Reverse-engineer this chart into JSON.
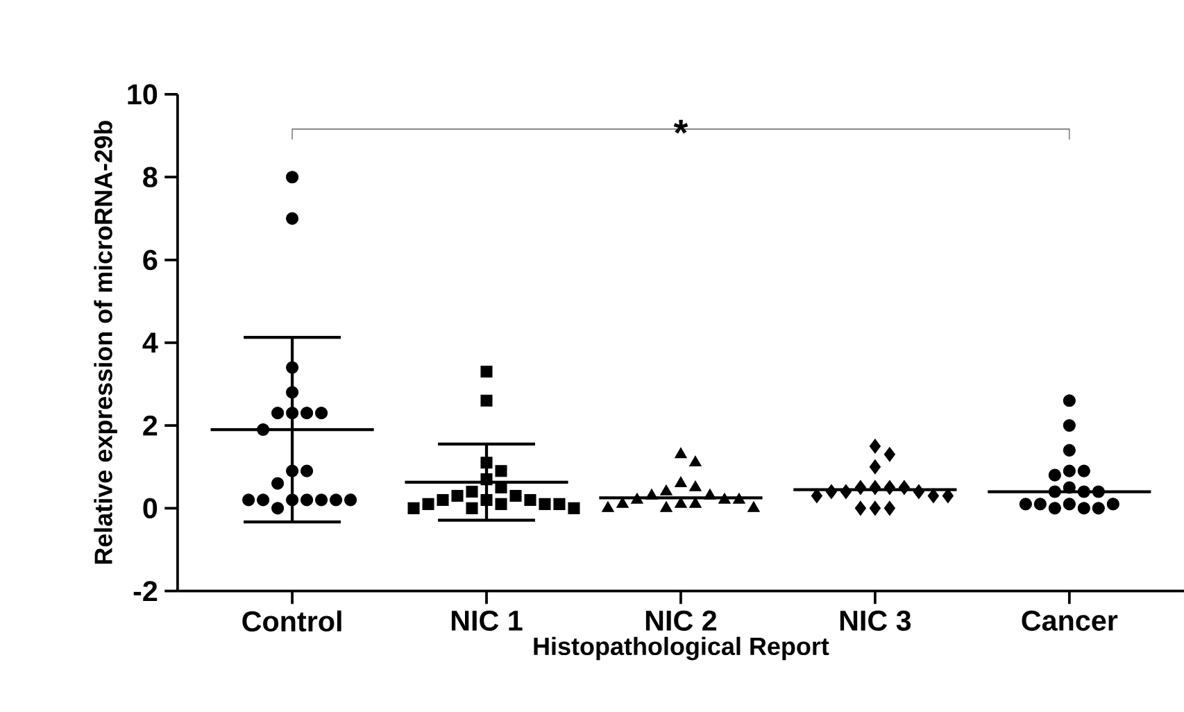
{
  "chart_data": {
    "type": "scatter",
    "xlabel": "Histopathological Report",
    "ylabel": "Relative expression of microRNA-29b",
    "categories": [
      "Control",
      "NIC 1",
      "NIC 2",
      "NIC 3",
      "Cancer"
    ],
    "ylim": [
      -2,
      10
    ],
    "yticks": [
      -2,
      0,
      2,
      4,
      6,
      8,
      10
    ],
    "annotations": [
      "*"
    ],
    "series": [
      {
        "marker": "circle",
        "color": "#000000",
        "x": [
          "Control",
          "Control",
          "Control",
          "Control",
          "Control",
          "Control",
          "Control",
          "Control",
          "Control",
          "Control",
          "Control",
          "Control",
          "Control",
          "Control",
          "Control",
          "Control",
          "Control",
          "Control",
          "Control",
          "Control"
        ],
        "values": [
          8,
          7,
          3.4,
          2.8,
          2.3,
          2.3,
          2.3,
          2.3,
          1.9,
          0.9,
          0.9,
          0.6,
          0.2,
          0.2,
          0.2,
          0.2,
          0.2,
          0.2,
          0.2,
          0
        ]
      },
      {
        "marker": "square",
        "color": "#000000",
        "x": [
          "NIC 1",
          "NIC 1",
          "NIC 1",
          "NIC 1",
          "NIC 1",
          "NIC 1",
          "NIC 1",
          "NIC 1",
          "NIC 1",
          "NIC 1",
          "NIC 1",
          "NIC 1",
          "NIC 1",
          "NIC 1",
          "NIC 1",
          "NIC 1",
          "NIC 1",
          "NIC 1",
          "NIC 1"
        ],
        "values": [
          3.3,
          2.6,
          1.1,
          0.9,
          0.7,
          0.5,
          0.4,
          0.3,
          0.3,
          0.2,
          0.2,
          0.2,
          0.1,
          0.1,
          0.1,
          0.1,
          0,
          0,
          0
        ]
      },
      {
        "marker": "triangle",
        "color": "#000000",
        "x": [
          "NIC 2",
          "NIC 2",
          "NIC 2",
          "NIC 2",
          "NIC 2",
          "NIC 2",
          "NIC 2",
          "NIC 2",
          "NIC 2",
          "NIC 2",
          "NIC 2",
          "NIC 2",
          "NIC 2",
          "NIC 2",
          "NIC 2",
          "NIC 2"
        ],
        "values": [
          1.3,
          1.1,
          0.6,
          0.5,
          0.4,
          0.3,
          0.3,
          0.2,
          0.2,
          0.2,
          0.1,
          0.1,
          0.1,
          0,
          0,
          0
        ]
      },
      {
        "marker": "diamond",
        "color": "#000000",
        "x": [
          "NIC 3",
          "NIC 3",
          "NIC 3",
          "NIC 3",
          "NIC 3",
          "NIC 3",
          "NIC 3",
          "NIC 3",
          "NIC 3",
          "NIC 3",
          "NIC 3",
          "NIC 3",
          "NIC 3",
          "NIC 3",
          "NIC 3",
          "NIC 3"
        ],
        "values": [
          1.5,
          1.3,
          1.0,
          0.5,
          0.5,
          0.5,
          0.5,
          0.4,
          0.4,
          0.4,
          0.3,
          0.3,
          0.3,
          0,
          0,
          0
        ]
      },
      {
        "marker": "circle",
        "color": "#000000",
        "x": [
          "Cancer",
          "Cancer",
          "Cancer",
          "Cancer",
          "Cancer",
          "Cancer",
          "Cancer",
          "Cancer",
          "Cancer",
          "Cancer",
          "Cancer",
          "Cancer",
          "Cancer",
          "Cancer",
          "Cancer",
          "Cancer",
          "Cancer"
        ],
        "values": [
          2.6,
          2.0,
          1.4,
          0.9,
          0.9,
          0.8,
          0.5,
          0.4,
          0.4,
          0.4,
          0.1,
          0.1,
          0.1,
          0.1,
          0,
          0,
          0
        ]
      },
      {
        "type": "box",
        "color": "#000000",
        "boxes": [
          {
            "low": -0.33,
            "q1": 1.9,
            "median": 1.9,
            "q3": 1.9,
            "high": 4.13
          },
          {
            "low": -0.29,
            "q1": 0.63,
            "median": 0.63,
            "q3": 0.63,
            "high": 1.55
          },
          {
            "low": 0.25,
            "q1": 0.25,
            "median": 0.25,
            "q3": 0.25,
            "high": 0.25
          },
          {
            "low": 0.45,
            "q1": 0.45,
            "median": 0.45,
            "q3": 0.45,
            "high": 0.45
          },
          {
            "low": 0.4,
            "q1": 0.4,
            "median": 0.4,
            "q3": 0.4,
            "high": 0.4
          }
        ]
      }
    ]
  }
}
